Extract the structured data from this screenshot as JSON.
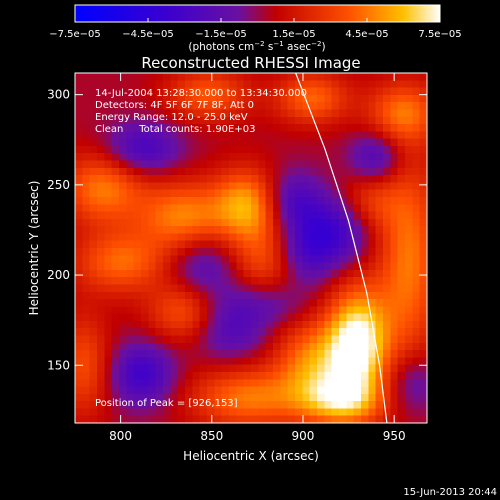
{
  "chart_data": {
    "type": "heatmap",
    "title": "Reconstructed RHESSI Image",
    "xlabel": "Heliocentric X (arcsec)",
    "ylabel": "Heliocentric Y (arcsec)",
    "xlim": [
      775,
      968
    ],
    "ylim": [
      118,
      312
    ],
    "x_ticks": [
      800,
      850,
      900,
      950
    ],
    "y_ticks": [
      150,
      200,
      250,
      300
    ],
    "colorbar": {
      "min": -7.5e-05,
      "max": 7.5e-05,
      "ticks": [
        -7.5e-05,
        -4.5e-05,
        -1.5e-05,
        1.5e-05,
        4.5e-05,
        7.5e-05
      ],
      "tick_labels": [
        "−7.5e−05",
        "−4.5e−05",
        "−1.5e−05",
        "1.5e−05",
        "4.5e−05",
        "7.5e−05"
      ],
      "unit_label_pre": "(photons cm",
      "unit_exp1": "−2",
      "unit_mid": " s",
      "unit_exp2": "−1",
      "unit_mid2": " asec",
      "unit_exp3": "−2",
      "unit_post": ")"
    },
    "info_lines": [
      "14-Jul-2004 13:28:30.000 to 13:34:30.000",
      "Detectors: 4F 5F 6F 7F 8F, Att 0",
      "Energy Range: 12.0 - 25.0 keV",
      "Clean     Total counts: 1.90E+03"
    ],
    "peak_label": "Position of Peak = [926,153]",
    "peak": [
      926,
      153
    ],
    "blobs": [
      {
        "x": 930,
        "y": 162,
        "sx": 12,
        "sy": 22,
        "a": 1.0
      },
      {
        "x": 905,
        "y": 152,
        "sx": 14,
        "sy": 16,
        "a": 0.55
      },
      {
        "x": 870,
        "y": 132,
        "sx": 22,
        "sy": 12,
        "a": 0.55
      },
      {
        "x": 920,
        "y": 130,
        "sx": 16,
        "sy": 10,
        "a": 0.6
      },
      {
        "x": 835,
        "y": 232,
        "sx": 18,
        "sy": 14,
        "a": 0.6
      },
      {
        "x": 868,
        "y": 240,
        "sx": 12,
        "sy": 14,
        "a": 0.55
      },
      {
        "x": 790,
        "y": 248,
        "sx": 16,
        "sy": 14,
        "a": 0.55
      },
      {
        "x": 800,
        "y": 207,
        "sx": 18,
        "sy": 12,
        "a": 0.5
      },
      {
        "x": 835,
        "y": 180,
        "sx": 14,
        "sy": 12,
        "a": 0.45
      },
      {
        "x": 880,
        "y": 208,
        "sx": 14,
        "sy": 20,
        "a": 0.45
      },
      {
        "x": 958,
        "y": 208,
        "sx": 12,
        "sy": 40,
        "a": 0.55
      },
      {
        "x": 955,
        "y": 290,
        "sx": 14,
        "sy": 12,
        "a": 0.5
      },
      {
        "x": 905,
        "y": 298,
        "sx": 14,
        "sy": 10,
        "a": 0.5
      },
      {
        "x": 848,
        "y": 300,
        "sx": 16,
        "sy": 10,
        "a": 0.45
      },
      {
        "x": 780,
        "y": 150,
        "sx": 10,
        "sy": 20,
        "a": 0.4
      },
      {
        "x": 935,
        "y": 240,
        "sx": 12,
        "sy": 12,
        "a": 0.35
      },
      {
        "x": 812,
        "y": 270,
        "sx": 14,
        "sy": 10,
        "a": -0.45
      },
      {
        "x": 812,
        "y": 145,
        "sx": 12,
        "sy": 12,
        "a": -0.5
      },
      {
        "x": 918,
        "y": 226,
        "sx": 14,
        "sy": 14,
        "a": -0.5
      },
      {
        "x": 900,
        "y": 212,
        "sx": 12,
        "sy": 12,
        "a": -0.4
      },
      {
        "x": 895,
        "y": 240,
        "sx": 10,
        "sy": 12,
        "a": -0.4
      },
      {
        "x": 845,
        "y": 205,
        "sx": 14,
        "sy": 14,
        "a": -0.35
      },
      {
        "x": 940,
        "y": 265,
        "sx": 10,
        "sy": 10,
        "a": -0.4
      },
      {
        "x": 860,
        "y": 170,
        "sx": 14,
        "sy": 12,
        "a": -0.35
      },
      {
        "x": 880,
        "y": 185,
        "sx": 16,
        "sy": 10,
        "a": -0.35
      },
      {
        "x": 960,
        "y": 140,
        "sx": 10,
        "sy": 12,
        "a": -0.3
      }
    ],
    "base_level": 0.05,
    "limb_curve": [
      [
        896,
        312
      ],
      [
        912,
        270
      ],
      [
        925,
        230
      ],
      [
        935,
        190
      ],
      [
        942,
        150
      ],
      [
        946,
        118
      ]
    ]
  },
  "footer_date": "15-Jun-2013 20:44"
}
